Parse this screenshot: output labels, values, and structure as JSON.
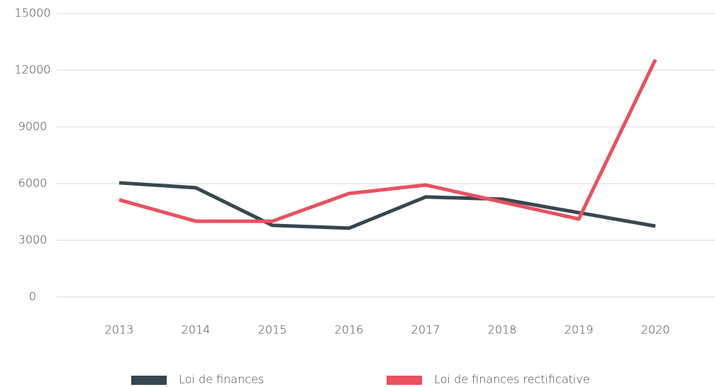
{
  "chart_data": {
    "type": "line",
    "categories": [
      "2013",
      "2014",
      "2015",
      "2016",
      "2017",
      "2018",
      "2019",
      "2020"
    ],
    "series": [
      {
        "name": "Loi de finances",
        "color": "#37474f",
        "values": [
          6040,
          5780,
          3790,
          3640,
          5290,
          5175,
          4460,
          3750
        ]
      },
      {
        "name": "Loi de finances rectificative",
        "color": "#e8515f",
        "values": [
          5140,
          4010,
          4010,
          5475,
          5925,
          5025,
          4125,
          12560
        ]
      }
    ],
    "ylim": [
      0,
      15000
    ],
    "yticks": [
      0,
      3000,
      6000,
      9000,
      12000,
      15000
    ],
    "grid": true,
    "legend": "bottom"
  }
}
